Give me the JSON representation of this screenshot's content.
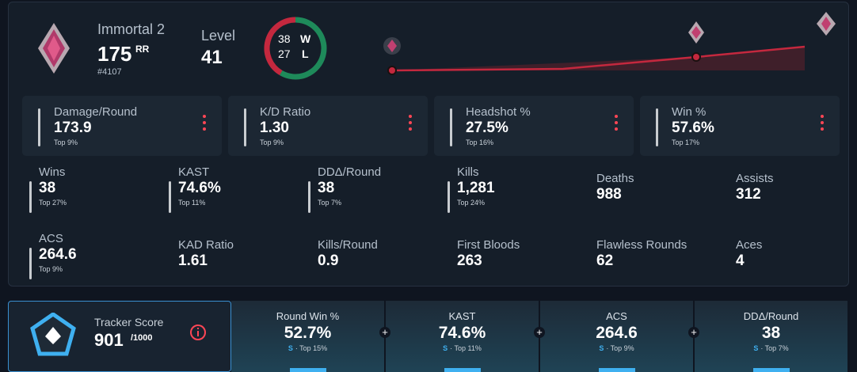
{
  "profile": {
    "rank": "Immortal 2",
    "rr": "175",
    "rr_unit": "RR",
    "leaderboard": "#4107",
    "level_label": "Level",
    "level": "41",
    "wins": 38,
    "losses": 27,
    "w": "W",
    "l": "L"
  },
  "highlights": [
    {
      "label": "Damage/Round",
      "value": "173.9",
      "sub": "Top 9%"
    },
    {
      "label": "K/D Ratio",
      "value": "1.30",
      "sub": "Top 9%"
    },
    {
      "label": "Headshot %",
      "value": "27.5%",
      "sub": "Top 16%"
    },
    {
      "label": "Win %",
      "value": "57.6%",
      "sub": "Top 17%"
    }
  ],
  "stats": [
    {
      "label": "Wins",
      "value": "38",
      "sub": "Top 27%"
    },
    {
      "label": "KAST",
      "value": "74.6%",
      "sub": "Top 11%"
    },
    {
      "label": "DDΔ/Round",
      "value": "38",
      "sub": "Top 7%"
    },
    {
      "label": "Kills",
      "value": "1,281",
      "sub": "Top 24%"
    },
    {
      "label": "Deaths",
      "value": "988"
    },
    {
      "label": "Assists",
      "value": "312"
    },
    {
      "label": "ACS",
      "value": "264.6",
      "sub": "Top 9%"
    },
    {
      "label": "KAD Ratio",
      "value": "1.61"
    },
    {
      "label": "Kills/Round",
      "value": "0.9"
    },
    {
      "label": "First Bloods",
      "value": "263"
    },
    {
      "label": "Flawless Rounds",
      "value": "62"
    },
    {
      "label": "Aces",
      "value": "4"
    }
  ],
  "tracker": {
    "label": "Tracker Score",
    "score": "901",
    "max": "/1000",
    "items": [
      {
        "label": "Round Win %",
        "value": "52.7%",
        "grade": "S",
        "sub": "· Top 15%"
      },
      {
        "label": "KAST",
        "value": "74.6%",
        "grade": "S",
        "sub": "· Top 11%"
      },
      {
        "label": "ACS",
        "value": "264.6",
        "grade": "S",
        "sub": "· Top 9%"
      },
      {
        "label": "DDΔ/Round",
        "value": "38",
        "grade": "S",
        "sub": "· Top 7%"
      }
    ]
  }
}
